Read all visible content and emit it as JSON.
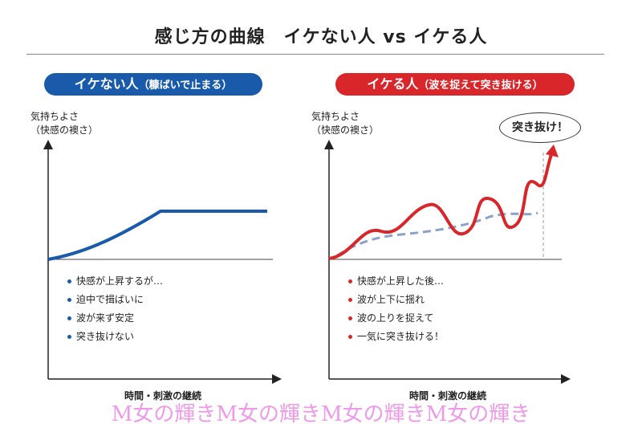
{
  "title": "感じ方の曲線　イケない人 vs イケる人",
  "left": {
    "header": "イケない人",
    "header_sub": "（糠ばいで止まる）",
    "ylabel1": "気持ちよさ",
    "ylabel2": "（快感の襖さ）",
    "xlabel": "時間・刺激の継続",
    "bullets": [
      "快感が上昇するが…",
      "迫中で揖ばいに",
      "波が来ず安定",
      "突き抜けない"
    ],
    "color": "#1a5aaa"
  },
  "right": {
    "header": "イケる人",
    "header_sub": "（波を捉えて突き抜ける）",
    "ylabel1": "気持ちよさ",
    "ylabel2": "（快感の襖さ）",
    "xlabel": "時間・刺激の継続",
    "bullets": [
      "快感が上昇した後…",
      "波が上下に揺れ",
      "波の上りを捉えて",
      "一気に突き抜ける！"
    ],
    "bubble": "突き抜け！",
    "color": "#d8262a"
  },
  "watermark": "M女の輝きM女の輝きM女の輝きM女の輝き"
}
